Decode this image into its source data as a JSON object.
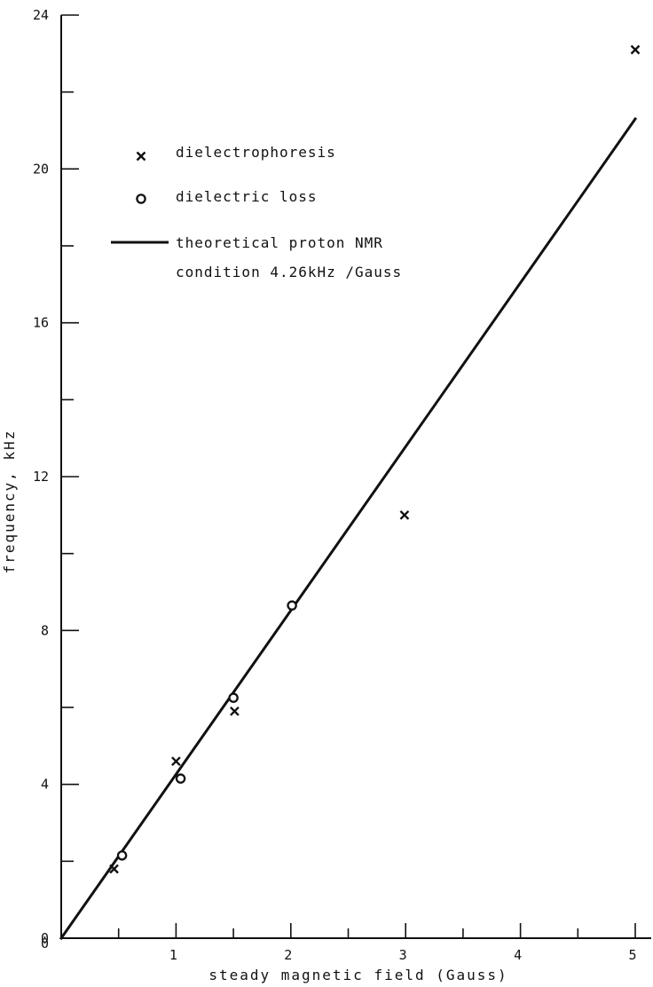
{
  "chart_data": {
    "type": "scatter",
    "title": "",
    "xlabel": "steady magnetic field (Gauss)",
    "ylabel": "frequency, kHz",
    "xlim": [
      0,
      5
    ],
    "ylim": [
      0,
      24
    ],
    "x_major_ticks": [
      0,
      1,
      2,
      3,
      4,
      5
    ],
    "x_major_tick_labels": [
      "0",
      "1",
      "2",
      "3",
      "4",
      "5"
    ],
    "x_minor_ticks": [
      0.5,
      1.5,
      2.5,
      3.5,
      4.5
    ],
    "y_major_ticks": [
      0,
      4,
      8,
      12,
      16,
      20,
      24
    ],
    "y_major_tick_labels": [
      "0",
      "4",
      "8",
      "12",
      "16",
      "20",
      "24"
    ],
    "y_minor_ticks": [
      2,
      6,
      10,
      14,
      18,
      22
    ],
    "grid": false,
    "legend_position": "top-left",
    "series": [
      {
        "name": "dielectrophoresis",
        "marker": "x",
        "color": "#111111",
        "points": [
          {
            "x": 0.46,
            "y": 1.8
          },
          {
            "x": 1.0,
            "y": 4.6
          },
          {
            "x": 1.51,
            "y": 5.9
          },
          {
            "x": 2.99,
            "y": 11.0
          },
          {
            "x": 5.0,
            "y": 23.1
          }
        ]
      },
      {
        "name": "dielectric loss",
        "marker": "circle",
        "color": "#111111",
        "points": [
          {
            "x": 0.53,
            "y": 2.15
          },
          {
            "x": 1.04,
            "y": 4.15
          },
          {
            "x": 1.5,
            "y": 6.25
          },
          {
            "x": 2.01,
            "y": 8.65
          }
        ]
      },
      {
        "name": "theoretical proton NMR condition 4.26kHz /Gauss",
        "name_lines": [
          "theoretical proton NMR",
          "condition 4.26kHz /Gauss"
        ],
        "type": "line",
        "color": "#111111",
        "points": [
          {
            "x": 0,
            "y": 0
          },
          {
            "x": 5,
            "y": 21.3
          }
        ]
      }
    ]
  }
}
